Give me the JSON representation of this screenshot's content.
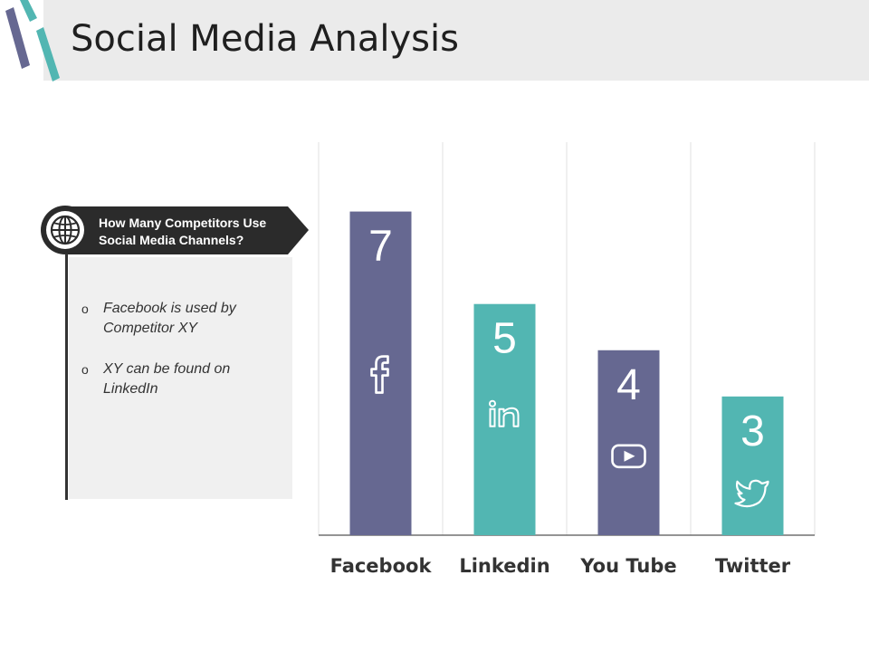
{
  "header": {
    "title": "Social Media Analysis"
  },
  "callout": {
    "heading_line1": "How Many Competitors Use",
    "heading_line2": "Social Media Channels?",
    "bullets": [
      "Facebook is used by Competitor XY",
      "XY can be found on LinkedIn"
    ],
    "icon": "globe-icon"
  },
  "colors": {
    "purple": "#666891",
    "teal": "#52b6b2",
    "dark": "#333333"
  },
  "chart_data": {
    "type": "bar",
    "categories": [
      "Facebook",
      "Linkedin",
      "You Tube",
      "Twitter"
    ],
    "values": [
      7,
      5,
      4,
      3
    ],
    "icons": [
      "facebook-icon",
      "linkedin-icon",
      "youtube-icon",
      "twitter-icon"
    ],
    "bar_colors": [
      "#666891",
      "#52b6b2",
      "#666891",
      "#52b6b2"
    ],
    "ylim": [
      0,
      8.5
    ],
    "grid": "vertical separators",
    "title": "",
    "xlabel": "",
    "ylabel": ""
  }
}
